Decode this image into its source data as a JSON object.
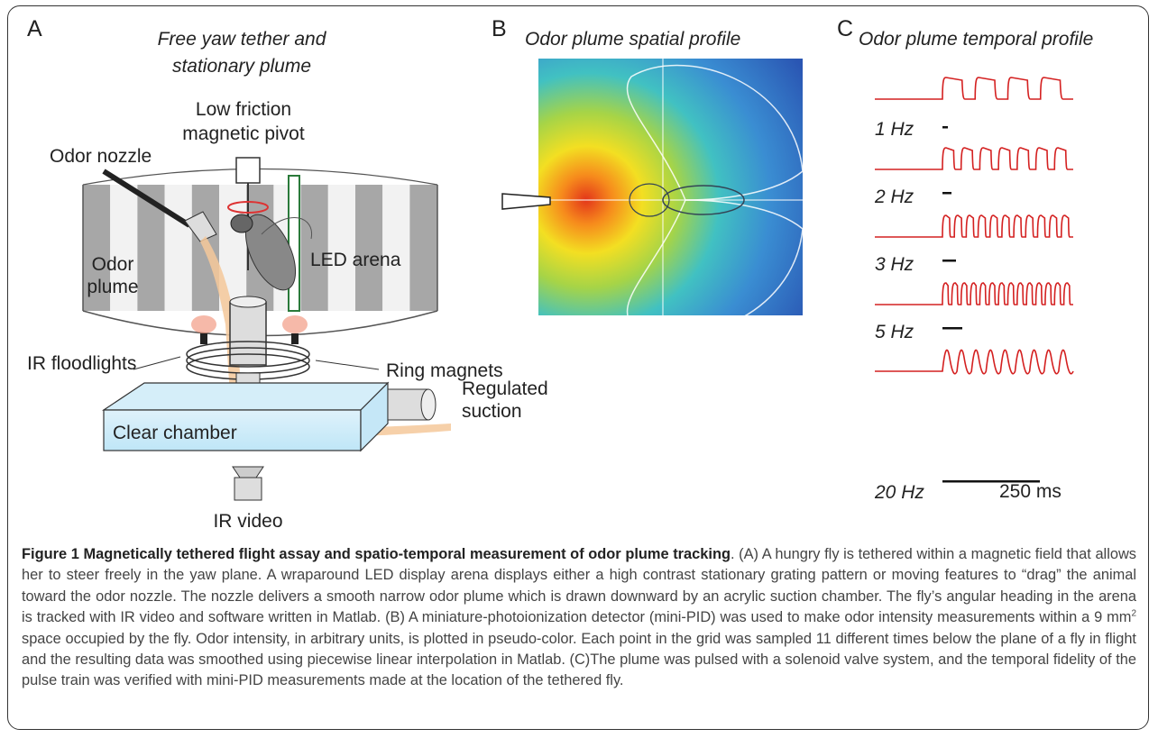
{
  "panels": {
    "a": {
      "letter": "A",
      "title_lines": [
        "Free yaw tether and",
        "stationary plume"
      ],
      "labels": {
        "pivot": [
          "Low friction",
          "magnetic pivot"
        ],
        "nozzle": "Odor nozzle",
        "plume": [
          "Odor",
          "plume"
        ],
        "arena": "LED arena",
        "floodlights": "IR floodlights",
        "magnets": "Ring magnets",
        "suction": [
          "Regulated",
          "suction"
        ],
        "chamber": "Clear chamber",
        "video": "IR video"
      }
    },
    "b": {
      "letter": "B",
      "title": "Odor plume spatial profile"
    },
    "c": {
      "letter": "C",
      "title": "Odor plume temporal profile",
      "rows": [
        "1 Hz",
        "2 Hz",
        "3 Hz",
        "5 Hz",
        "20 Hz"
      ],
      "scale_bar": "250 ms"
    }
  },
  "caption": {
    "bold": "Figure 1 Magnetically tethered flight assay and spatio-temporal measurement of odor plume tracking",
    "text_before_sup": ". (A) A hungry fly is tethered within a magnetic field that allows her to steer freely in the yaw plane. A wraparound LED display arena displays either a high contrast stationary grating pattern or moving features to “drag” the animal toward the odor nozzle. The nozzle delivers a smooth narrow odor plume which is drawn downward by an acrylic suction chamber. The fly’s angular heading in the arena is tracked with IR video and software written in Matlab. (B) A miniature-photoionization detector (mini-PID) was used to make odor intensity measurements within a 9 mm",
    "sup": "2",
    "text_after_sup": " space occupied by the fly. Odor intensity, in arbitrary units, is plotted in pseudo-color. Each point in the grid was sampled 11 different times below the plane of a fly in flight and the resulting data was smoothed using piecewise linear interpolation in Matlab. (C)The plume was pulsed with a solenoid valve system, and the temporal fidelity of the pulse train was verified with mini-PID measurements made at the location of the tethered fly."
  }
}
